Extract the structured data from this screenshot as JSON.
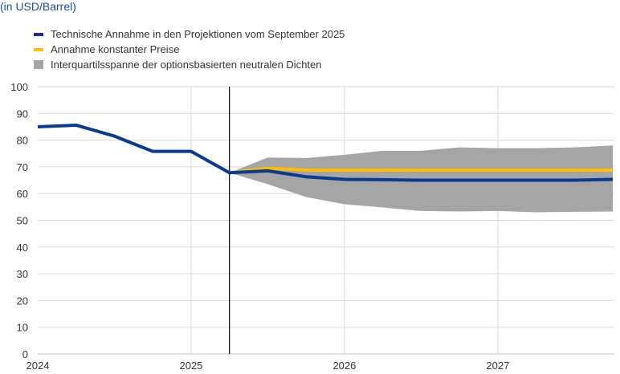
{
  "chart_data": {
    "type": "line",
    "title": "(in USD/Barrel)",
    "xlabel": "",
    "ylabel": "",
    "ylim": [
      0,
      100
    ],
    "xlim": [
      2024,
      2027.76
    ],
    "yticks": [
      0,
      10,
      20,
      30,
      40,
      50,
      60,
      70,
      80,
      90,
      100
    ],
    "xticks": [
      2024,
      2025,
      2026,
      2027
    ],
    "grid": true,
    "legend_position": "top-left",
    "vline_x": 2025.25,
    "series": [
      {
        "name": "Technische Annahme in den Projektionen vom September 2025",
        "color": "#0a3a8f",
        "x": [
          2024,
          2024.25,
          2024.5,
          2024.75,
          2025,
          2025.25,
          2025.5,
          2025.75,
          2026,
          2026.25,
          2026.5,
          2026.75,
          2027,
          2027.25,
          2027.5,
          2027.75
        ],
        "values": [
          85.0,
          85.6,
          81.5,
          75.8,
          75.8,
          67.8,
          68.5,
          66.3,
          65.3,
          65.2,
          65.0,
          65.0,
          65.0,
          65.0,
          65.0,
          65.3
        ]
      },
      {
        "name": "Annahme konstanter Preise",
        "color": "#ffbf00",
        "x": [
          2025.25,
          2025.5,
          2025.75,
          2026,
          2026.25,
          2026.5,
          2026.75,
          2027,
          2027.25,
          2027.5,
          2027.75
        ],
        "values": [
          67.8,
          69.5,
          68.8,
          68.8,
          68.8,
          68.8,
          68.8,
          68.8,
          68.8,
          68.8,
          68.8
        ]
      }
    ],
    "band": {
      "name": "Interquartilsspanne der optionsbasierten neutralen Dichten",
      "color": "#a5a5a5",
      "x": [
        2025.25,
        2025.5,
        2025.75,
        2026,
        2026.25,
        2026.5,
        2026.75,
        2027,
        2027.25,
        2027.5,
        2027.75
      ],
      "upper": [
        67.8,
        73.5,
        73.3,
        74.5,
        76.0,
        76.0,
        77.3,
        77.0,
        77.0,
        77.3,
        78.0
      ],
      "lower": [
        67.8,
        63.5,
        58.7,
        56.0,
        54.8,
        53.5,
        53.3,
        53.5,
        53.0,
        53.2,
        53.3
      ]
    }
  }
}
